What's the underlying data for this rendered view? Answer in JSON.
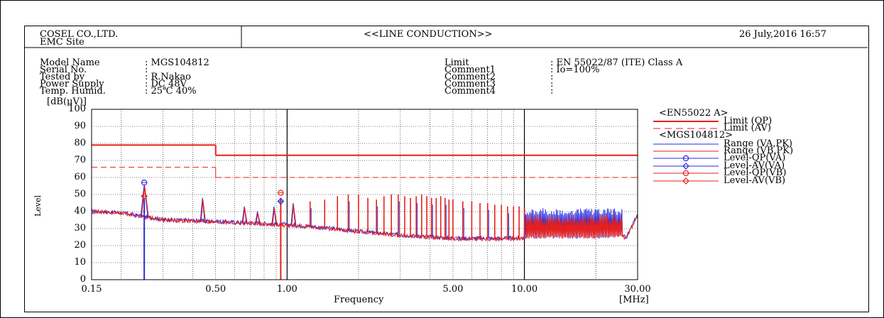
{
  "header": {
    "company": "COSEL CO.,LTD.",
    "site": "EMC Site",
    "title": "<<LINE CONDUCTION>>",
    "datetime": "26 July,2016 16:57"
  },
  "info": {
    "left": [
      {
        "label": "Model Name",
        "value": ": MGS104812"
      },
      {
        "label": "Serial No.",
        "value": ":"
      },
      {
        "label": "Tested by",
        "value": ": R.Nakao"
      },
      {
        "label": "Power Supply",
        "value": ": DC 48V"
      },
      {
        "label": "Temp. Humid.",
        "value": ": 25℃ 40%"
      }
    ],
    "right": [
      {
        "label": "Limit",
        "value": ": EN 55022/87 (ITE) Class A"
      },
      {
        "label": "Comment1",
        "value": ": Io=100%"
      },
      {
        "label": "Comment2",
        "value": ":"
      },
      {
        "label": "Comment3",
        "value": ":"
      },
      {
        "label": "Comment4",
        "value": ":"
      }
    ]
  },
  "legend": {
    "group1": "<EN55022 A>",
    "group2": "<MGS104812>"
  },
  "colors": {
    "red": "#e8201c",
    "blue": "#2a2ee0",
    "grid": "#000000"
  },
  "chart_data": {
    "type": "line",
    "xscale": "log",
    "xlim": [
      0.15,
      30
    ],
    "ylim": [
      0,
      100
    ],
    "ylabel_unit": "[dB(μV)]",
    "ylabel": "Level",
    "xlabel": "Frequency",
    "xunit": "[MHz]",
    "yticks": [
      0,
      10,
      20,
      30,
      40,
      50,
      60,
      70,
      80,
      90,
      100
    ],
    "xticks": [
      {
        "value": 0.15,
        "label": "0.15"
      },
      {
        "value": 0.5,
        "label": "0.50"
      },
      {
        "value": 1,
        "label": "1.00"
      },
      {
        "value": 5,
        "label": "5.00"
      },
      {
        "value": 10,
        "label": "10.00"
      },
      {
        "value": 30,
        "label": "30.00"
      }
    ],
    "limits": [
      {
        "name": "Limit (QP)",
        "style": "solid",
        "segments": [
          [
            0.15,
            0.5,
            79
          ],
          [
            0.5,
            30,
            73
          ]
        ]
      },
      {
        "name": "Limit (AV)",
        "style": "dashed",
        "segments": [
          [
            0.15,
            0.5,
            66
          ],
          [
            0.5,
            30,
            60
          ]
        ]
      }
    ],
    "ranges": [
      {
        "name": "Range (VA,PK)",
        "color": "blue"
      },
      {
        "name": "Range (VB,PK)",
        "color": "red"
      }
    ],
    "peaks": [
      {
        "f": 0.25,
        "pk": 56
      },
      {
        "f": 0.44,
        "pk": 48
      },
      {
        "f": 0.66,
        "pk": 43
      },
      {
        "f": 0.75,
        "pk": 40
      },
      {
        "f": 0.88,
        "pk": 43
      },
      {
        "f": 1.06,
        "pk": 45
      },
      {
        "f": 1.25,
        "pk": 46
      },
      {
        "f": 1.44,
        "pk": 47
      },
      {
        "f": 1.63,
        "pk": 49
      },
      {
        "f": 1.81,
        "pk": 50
      },
      {
        "f": 2.0,
        "pk": 50
      },
      {
        "f": 2.19,
        "pk": 48
      },
      {
        "f": 2.38,
        "pk": 47
      },
      {
        "f": 2.56,
        "pk": 49
      },
      {
        "f": 2.75,
        "pk": 50
      },
      {
        "f": 2.94,
        "pk": 50
      },
      {
        "f": 3.13,
        "pk": 49
      },
      {
        "f": 3.31,
        "pk": 48
      },
      {
        "f": 3.5,
        "pk": 49
      },
      {
        "f": 3.69,
        "pk": 50
      },
      {
        "f": 3.88,
        "pk": 49
      },
      {
        "f": 4.06,
        "pk": 48
      },
      {
        "f": 4.25,
        "pk": 48
      },
      {
        "f": 4.44,
        "pk": 49
      },
      {
        "f": 4.63,
        "pk": 48
      },
      {
        "f": 4.81,
        "pk": 47
      },
      {
        "f": 5.0,
        "pk": 47
      },
      {
        "f": 5.5,
        "pk": 46
      },
      {
        "f": 6.0,
        "pk": 46
      },
      {
        "f": 6.5,
        "pk": 45
      },
      {
        "f": 7.0,
        "pk": 45
      },
      {
        "f": 7.5,
        "pk": 44
      },
      {
        "f": 8.0,
        "pk": 44
      },
      {
        "f": 8.5,
        "pk": 43
      },
      {
        "f": 9.0,
        "pk": 43
      },
      {
        "f": 9.5,
        "pk": 43
      },
      {
        "f": 10.0,
        "pk": 42
      }
    ],
    "noise_floor": [
      {
        "f": 0.15,
        "v": 40
      },
      {
        "f": 0.2,
        "v": 39
      },
      {
        "f": 0.3,
        "v": 35
      },
      {
        "f": 0.5,
        "v": 34
      },
      {
        "f": 1.0,
        "v": 32
      },
      {
        "f": 1.5,
        "v": 30
      },
      {
        "f": 2.0,
        "v": 28
      },
      {
        "f": 3.0,
        "v": 26
      },
      {
        "f": 5.0,
        "v": 24
      },
      {
        "f": 10.0,
        "v": 24
      },
      {
        "f": 20.0,
        "v": 24
      },
      {
        "f": 27.0,
        "v": 25
      },
      {
        "f": 30.0,
        "v": 38
      }
    ],
    "hf_band": {
      "start": 10,
      "end": 26,
      "va_top": 42,
      "vb_top": 38
    },
    "markers": [
      {
        "name": "Level-QP(VA)",
        "color": "blue",
        "shape": "circle",
        "f": 0.25,
        "v": 57
      },
      {
        "name": "Level-AV(VA)",
        "color": "blue",
        "shape": "diamond",
        "f": 0.94,
        "v": 46
      },
      {
        "name": "Level-QP(VB)",
        "color": "red",
        "shape": "circle",
        "f": 0.94,
        "v": 51
      },
      {
        "name": "Level-AV(VB)",
        "color": "red",
        "shape": "diamond",
        "f": 0.25,
        "v": 49
      }
    ],
    "drops": [
      {
        "f": 0.25,
        "color": "blue"
      },
      {
        "f": 0.94,
        "color": "red"
      }
    ]
  }
}
